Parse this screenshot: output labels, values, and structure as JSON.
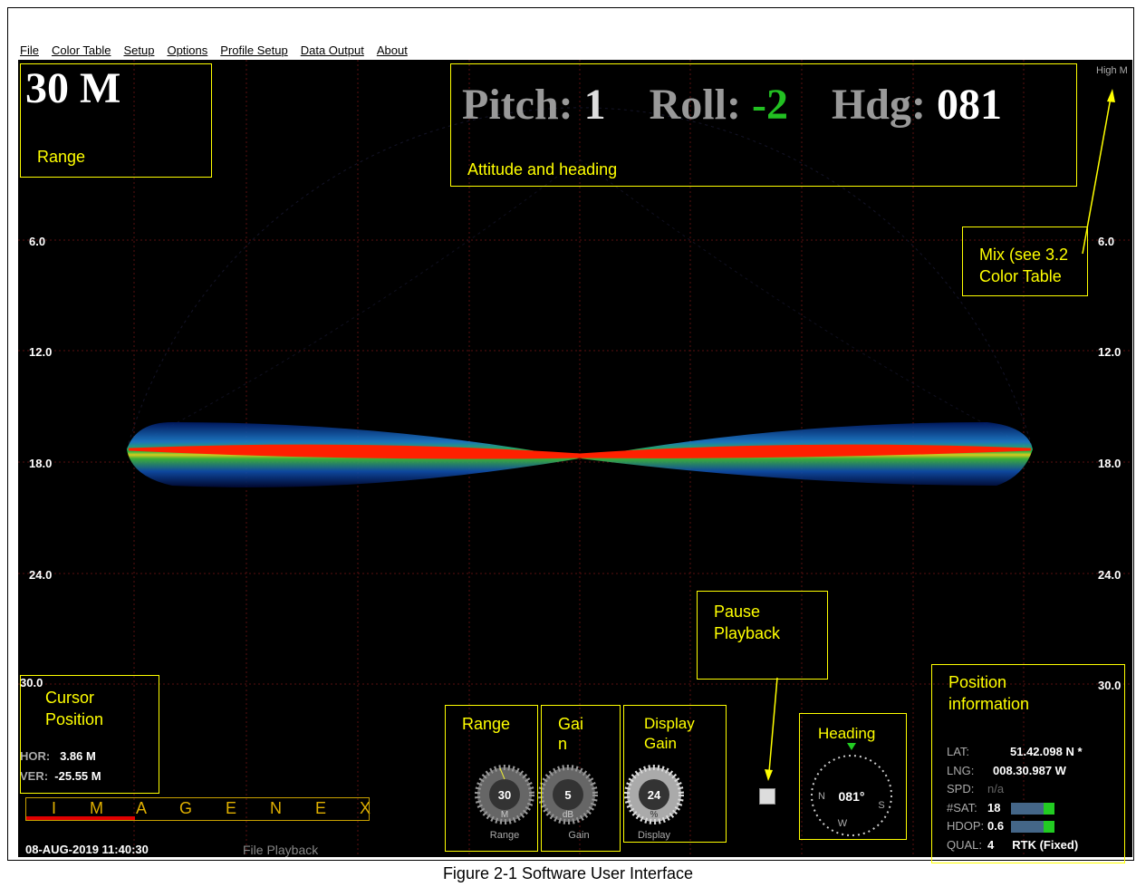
{
  "menu": [
    "File",
    "Color Table",
    "Setup",
    "Options",
    "Profile Setup",
    "Data Output",
    "About"
  ],
  "range_display": "30 M",
  "attitude": {
    "pitch_label": "Pitch:",
    "pitch": "1",
    "roll_label": "Roll:",
    "roll": "-2",
    "hdg_label": "Hdg:",
    "hdg": "081"
  },
  "color_mode": "High M",
  "depth_left": [
    "6.0",
    "12.0",
    "18.0",
    "24.0",
    "30.0"
  ],
  "depth_right": [
    "6.0",
    "12.0",
    "18.0",
    "24.0",
    "30.0"
  ],
  "cursor": {
    "hor_label": "HOR:",
    "hor": "3.86 M",
    "ver_label": "VER:",
    "ver": "-25.55 M"
  },
  "logo": "I M A G E N E X",
  "status": {
    "datetime": "08-AUG-2019 11:40:30",
    "mode": "File Playback"
  },
  "knobs": [
    {
      "value": "30",
      "unit": "M",
      "label": "Range"
    },
    {
      "value": "5",
      "unit": "dB",
      "label": "Gain"
    },
    {
      "value": "24",
      "unit": "%",
      "label": "Display"
    }
  ],
  "compass": {
    "heading": "081°",
    "n": "N",
    "s": "S",
    "w": "W"
  },
  "position": {
    "rows": [
      [
        "LAT:",
        "51.42.098 N *"
      ],
      [
        "LNG:",
        "008.30.987 W"
      ],
      [
        "SPD:",
        "n/a"
      ],
      [
        "#SAT:",
        "18"
      ],
      [
        "HDOP:",
        "0.6"
      ],
      [
        "QUAL:",
        "4"
      ]
    ],
    "fix": "RTK (Fixed)"
  },
  "annotations": {
    "range": "Range",
    "attitude": "Attitude and heading",
    "mix": [
      "Mix (see 3.2",
      "Color Table"
    ],
    "cursor": [
      "Cursor",
      "Position"
    ],
    "pause": [
      "Pause",
      "Playback"
    ],
    "position": [
      "Position",
      "information"
    ],
    "range_knob": "Range",
    "gain_knob": [
      "Gai",
      "n"
    ],
    "display_knob": [
      "Display",
      "Gain"
    ],
    "heading": "Heading"
  },
  "caption": "Figure 2-1 Software User Interface"
}
